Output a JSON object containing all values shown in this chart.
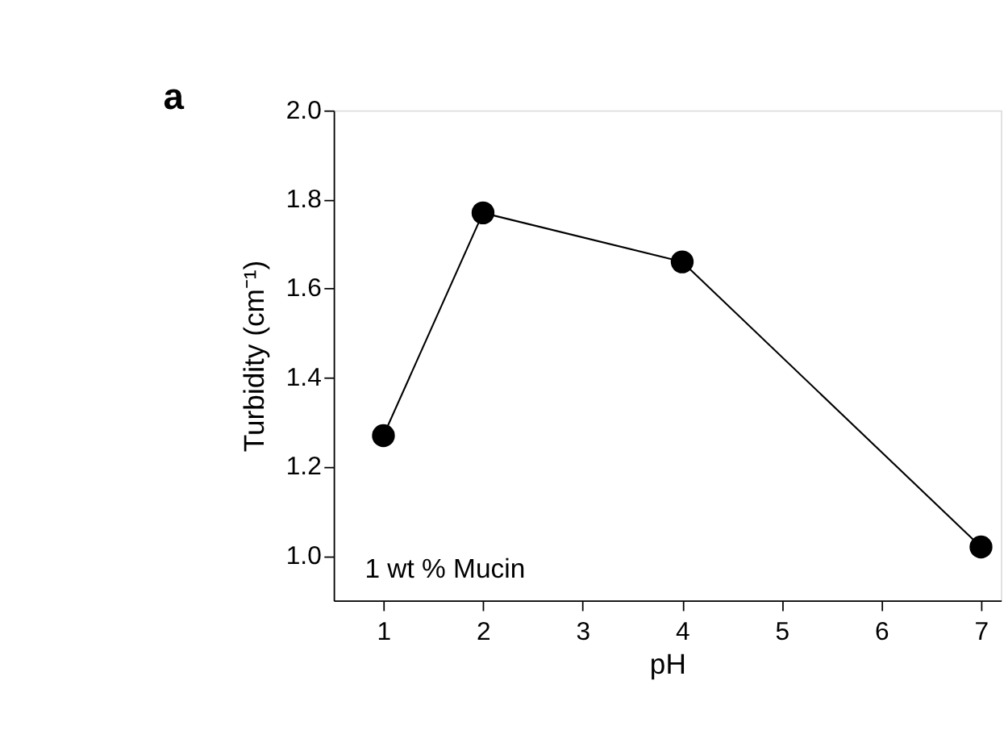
{
  "chart_data": {
    "type": "line",
    "xlabel": "pH",
    "ylabel": "Turbidity (cm⁻¹)",
    "x": [
      1,
      2,
      4,
      7
    ],
    "series": [
      {
        "color": "#000000",
        "values": [
          1.27,
          1.77,
          1.66,
          1.02
        ]
      }
    ],
    "xlim": [
      0.5,
      7.2
    ],
    "xticks": [
      1,
      2,
      3,
      4,
      5,
      6,
      7
    ],
    "ylim": [
      0.9,
      2.0
    ],
    "yticks": [
      {
        "value": 1.0,
        "label": "1.0"
      },
      {
        "value": 1.2,
        "label": "1.2"
      },
      {
        "value": 1.4,
        "label": "1.4"
      },
      {
        "value": 1.6,
        "label": "1.6"
      },
      {
        "value": 1.8,
        "label": "1.8"
      },
      {
        "value": 2.0,
        "label": "2.0"
      }
    ],
    "annotations": [
      "a",
      {
        "text": "1 wt % Mucin"
      }
    ],
    "grid": false,
    "marker": "circle",
    "line_style": "solid"
  }
}
